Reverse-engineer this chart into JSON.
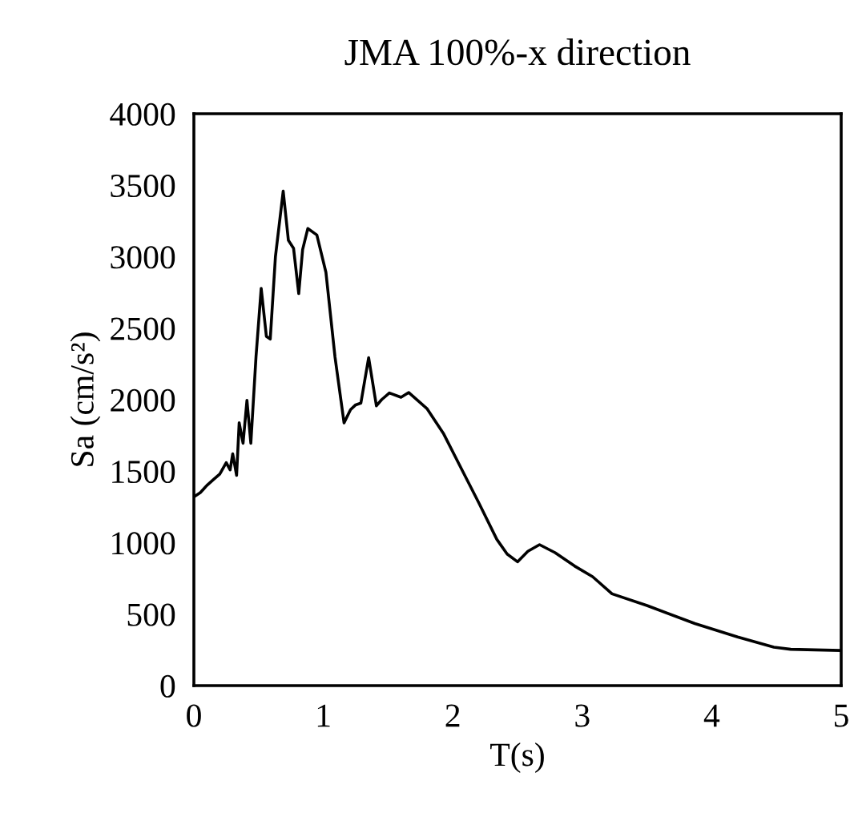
{
  "chart_data": {
    "type": "line",
    "title": "JMA 100%-x direction",
    "xlabel": "T(s)",
    "ylabel": "Sa (cm/s²)",
    "xlim": [
      0,
      5
    ],
    "ylim": [
      0,
      4000
    ],
    "xticks": [
      0,
      1,
      2,
      3,
      4,
      5
    ],
    "yticks": [
      0,
      500,
      1000,
      1500,
      2000,
      2500,
      3000,
      3500,
      4000
    ],
    "grid": false,
    "legend": false,
    "marker": "none",
    "line_style": "solid",
    "series": [
      {
        "color": "#000000",
        "x": [
          0,
          0.05,
          0.1,
          0.15,
          0.2,
          0.25,
          0.28,
          0.3,
          0.33,
          0.35,
          0.38,
          0.41,
          0.44,
          0.48,
          0.52,
          0.56,
          0.59,
          0.63,
          0.69,
          0.73,
          0.77,
          0.81,
          0.84,
          0.88,
          0.95,
          1.02,
          1.09,
          1.16,
          1.21,
          1.25,
          1.29,
          1.35,
          1.41,
          1.45,
          1.51,
          1.6,
          1.66,
          1.8,
          1.93,
          2.05,
          2.2,
          2.34,
          2.42,
          2.5,
          2.58,
          2.67,
          2.79,
          2.94,
          3.08,
          3.23,
          3.5,
          3.87,
          4.2,
          4.48,
          4.61,
          4.8,
          5.0
        ],
        "values": [
          1320,
          1350,
          1400,
          1440,
          1480,
          1560,
          1509,
          1621,
          1471,
          1838,
          1695,
          1995,
          1695,
          2300,
          2779,
          2443,
          2424,
          3000,
          3459,
          3115,
          3059,
          2742,
          3050,
          3197,
          3152,
          2891,
          2300,
          1838,
          1930,
          1964,
          1976,
          2294,
          1957,
          2000,
          2047,
          2017,
          2050,
          1938,
          1760,
          1546,
          1280,
          1023,
          920,
          866,
          940,
          986,
          930,
          837,
          762,
          642,
          560,
          434,
          340,
          269,
          254,
          250,
          246
        ]
      }
    ]
  }
}
